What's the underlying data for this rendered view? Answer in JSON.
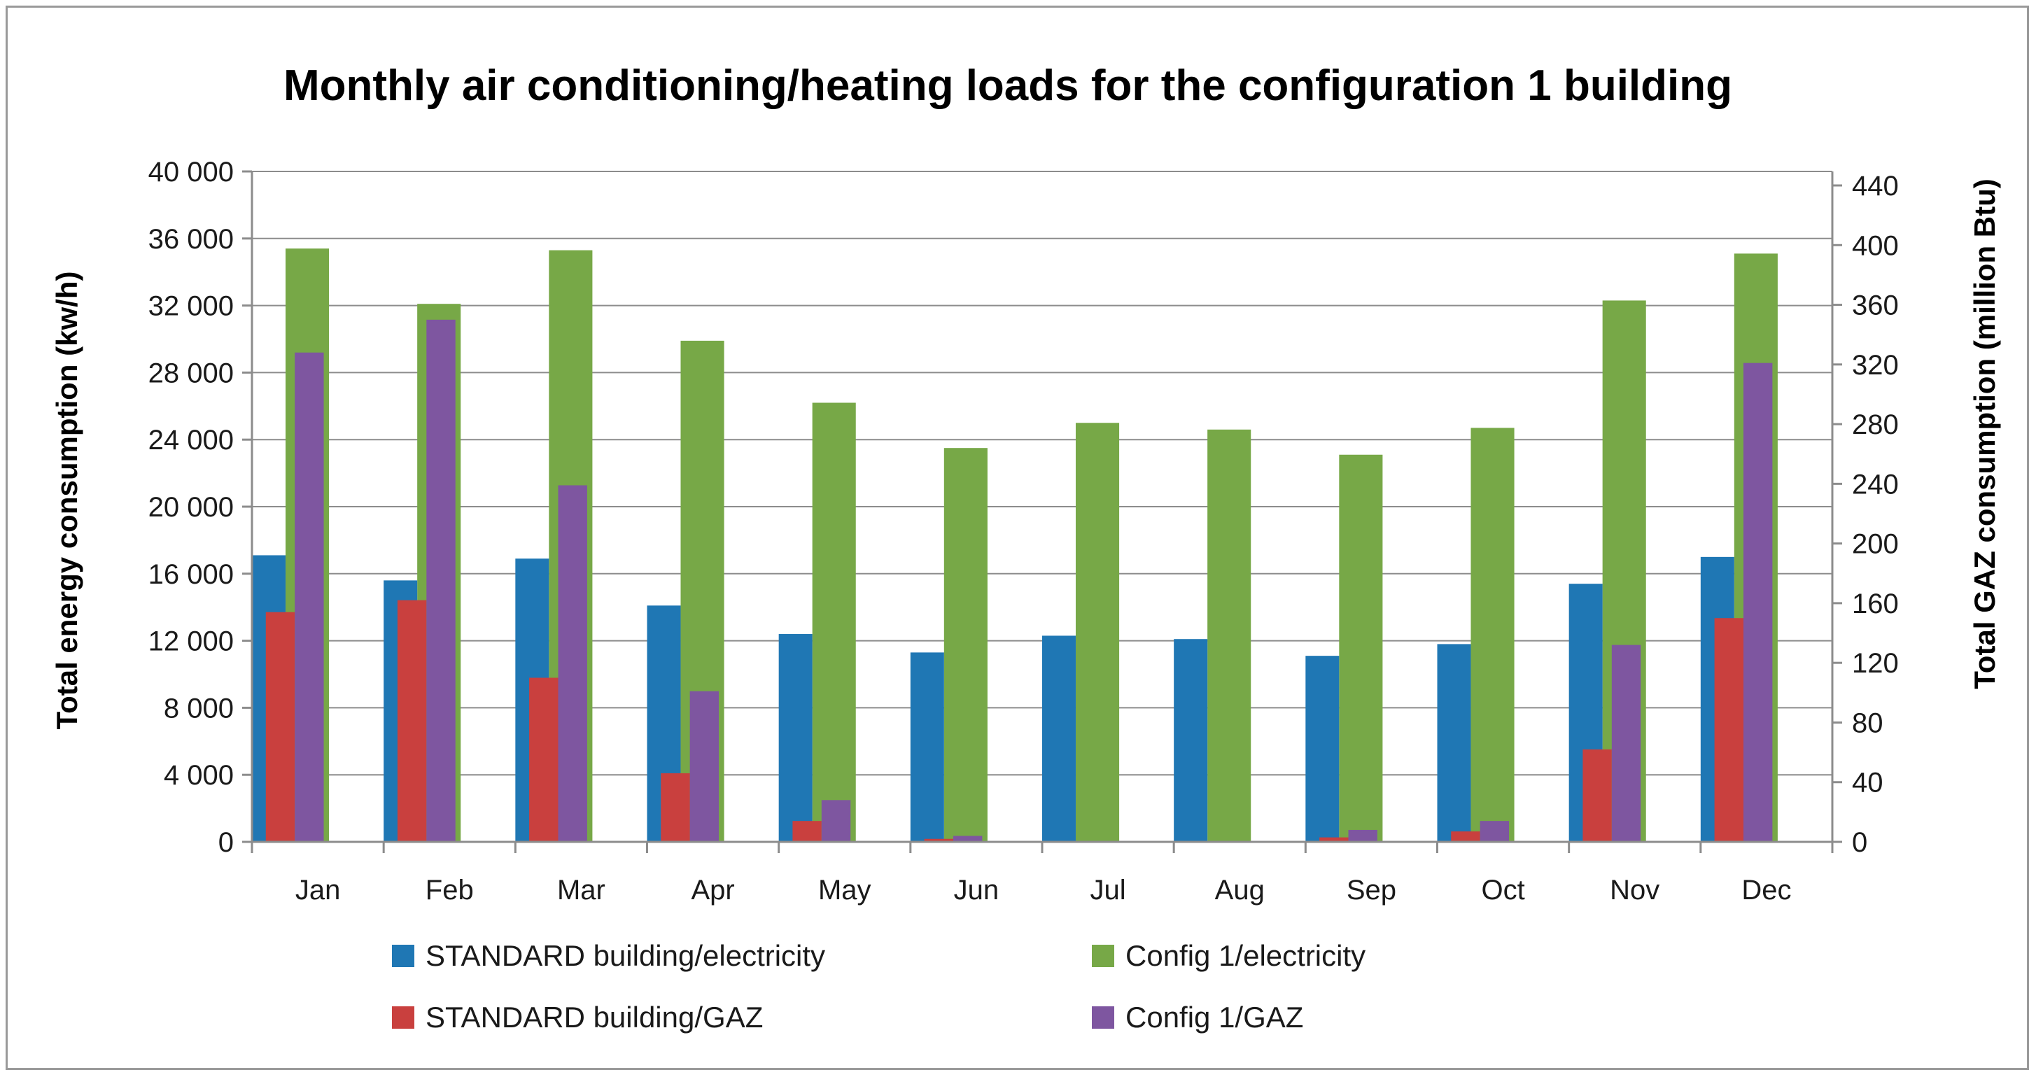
{
  "chart_data": {
    "type": "bar",
    "title": "Monthly air conditioning/heating loads for the configuration 1 building",
    "categories": [
      "Jan",
      "Feb",
      "Mar",
      "Apr",
      "May",
      "Jun",
      "Jul",
      "Aug",
      "Sep",
      "Oct",
      "Nov",
      "Dec"
    ],
    "ylabel": "Total energy consumption (kw/h)",
    "y2label": "Total GAZ consumption (million Btu)",
    "ylim": [
      0,
      40000
    ],
    "y2lim": [
      0,
      440
    ],
    "y_ticks": [
      0,
      4000,
      8000,
      12000,
      16000,
      20000,
      24000,
      28000,
      32000,
      36000,
      40000
    ],
    "y_tick_labels": [
      "0",
      "4 000",
      "8 000",
      "12 000",
      "16 000",
      "20 000",
      "24 000",
      "28 000",
      "32 000",
      "36 000",
      "40 000"
    ],
    "y2_ticks": [
      0,
      40,
      80,
      120,
      160,
      200,
      240,
      280,
      320,
      360,
      400,
      440
    ],
    "y2_tick_labels": [
      "0",
      "40",
      "80",
      "120",
      "160",
      "200",
      "240",
      "280",
      "320",
      "360",
      "400",
      "440"
    ],
    "grid": true,
    "legend_position": "bottom",
    "series": [
      {
        "name": "STANDARD building/electricity",
        "axis": "primary",
        "color": "#1f77b4",
        "values": [
          17100,
          15600,
          16900,
          14100,
          12400,
          11300,
          12300,
          12100,
          11100,
          11800,
          15400,
          17000
        ]
      },
      {
        "name": "Config 1/electricity",
        "axis": "primary",
        "color": "#77a847",
        "values": [
          35400,
          32100,
          35300,
          29900,
          26200,
          23500,
          25000,
          24600,
          23100,
          24700,
          32300,
          35100
        ]
      },
      {
        "name": "STANDARD building/GAZ",
        "axis": "secondary",
        "color": "#c9403e",
        "values": [
          154,
          162,
          110,
          46,
          14,
          2,
          0,
          0,
          3,
          7,
          62,
          150
        ]
      },
      {
        "name": "Config 1/GAZ",
        "axis": "secondary",
        "color": "#7e56a0",
        "values": [
          328,
          350,
          239,
          101,
          28,
          4,
          0,
          0,
          8,
          14,
          132,
          321
        ]
      }
    ],
    "legend": [
      {
        "label": "STANDARD building/electricity",
        "color": "#1f77b4"
      },
      {
        "label": "Config 1/electricity",
        "color": "#77a847"
      },
      {
        "label": "STANDARD building/GAZ",
        "color": "#c9403e"
      },
      {
        "label": "Config 1/GAZ",
        "color": "#7e56a0"
      }
    ]
  }
}
